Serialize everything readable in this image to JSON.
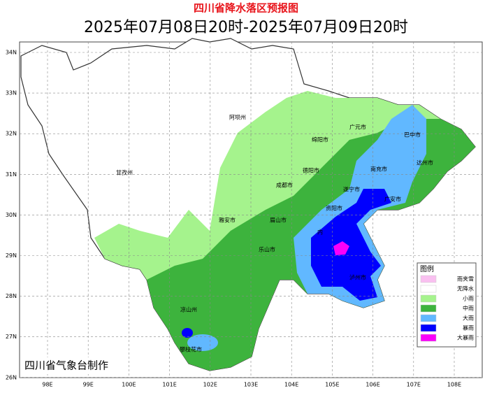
{
  "title": "四川省降水落区预报图",
  "subtitle": "2025年07月08日20时-2025年07月09日20时",
  "lon_ticks": [
    "98E",
    "99E",
    "100E",
    "101E",
    "102E",
    "103E",
    "104E",
    "105E",
    "106E",
    "107E",
    "108E"
  ],
  "lat_ticks": [
    "34N",
    "33N",
    "32N",
    "31N",
    "30N",
    "29N",
    "28N",
    "27N",
    "26N"
  ],
  "places": [
    "阿坝州",
    "甘孜州",
    "绵阳市",
    "广元市",
    "巴中市",
    "达州市",
    "南充市",
    "德阳市",
    "成都市",
    "遂宁市",
    "广安市",
    "雅安市",
    "眉山市",
    "资阳市",
    "乐山市",
    "内",
    "凉山州",
    "攀枝花市",
    "泸州市"
  ],
  "legend": {
    "title": "图例",
    "items": [
      {
        "label": "雨夹雪",
        "color": "#f9c0f0"
      },
      {
        "label": "无降水",
        "color": "#ffffff"
      },
      {
        "label": "小雨",
        "color": "#a5f38d"
      },
      {
        "label": "中雨",
        "color": "#3db33d"
      },
      {
        "label": "大雨",
        "color": "#61b8ff"
      },
      {
        "label": "暴雨",
        "color": "#0000fe"
      },
      {
        "label": "大暴雨",
        "color": "#fa00fa"
      }
    ]
  },
  "credit": "四川省气象台制作"
}
